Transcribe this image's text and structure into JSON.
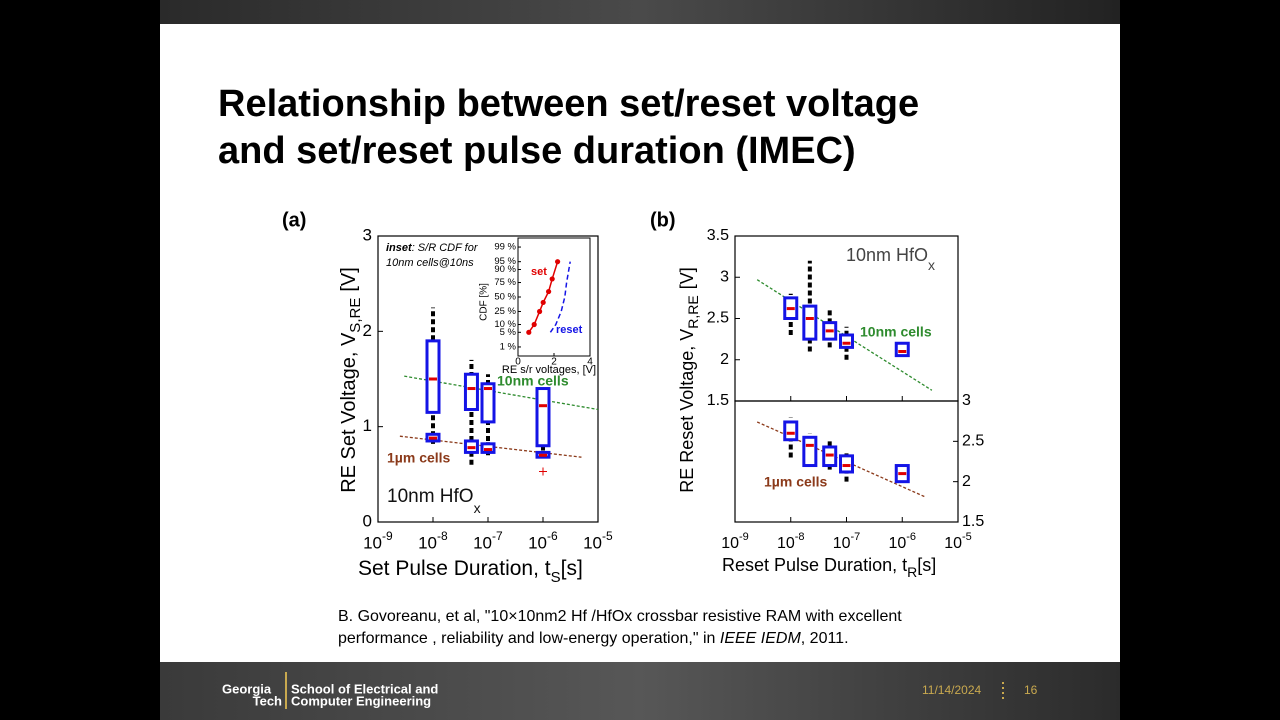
{
  "slide": {
    "title_line1": "Relationship between set/reset voltage",
    "title_line2": "and set/reset pulse duration (IMEC)"
  },
  "chart_data": [
    {
      "type": "box",
      "label": "(a)",
      "ylabel": {
        "text": "RE Set Voltage, V",
        "sub": "S,RE",
        "unit": "[V]"
      },
      "xlabel": {
        "text": "Set Pulse Duration, t",
        "sub": "S",
        "unit": "[s]"
      },
      "material": {
        "text": "10nm HfO",
        "sub": "x"
      },
      "xscale": "log",
      "xlim": [
        1e-09,
        1e-05
      ],
      "xticks": [
        {
          "value": 1e-09,
          "label": "10",
          "sup": "-9"
        },
        {
          "value": 1e-08,
          "label": "10",
          "sup": "-8"
        },
        {
          "value": 1e-07,
          "label": "10",
          "sup": "-7"
        },
        {
          "value": 1e-06,
          "label": "10",
          "sup": "-6"
        },
        {
          "value": 1e-05,
          "label": "10",
          "sup": "-5"
        }
      ],
      "box_color": "#1414e6",
      "median_color": "#e00000",
      "whisker_color": "#000000",
      "axes": [
        {
          "ylim": [
            0,
            3
          ],
          "yticks": [
            0,
            1,
            2,
            3
          ],
          "ytick_side": "left",
          "series": [
            {
              "name": "10nm cells",
              "color": "#2e8b2e",
              "x": [
                1e-08,
                5e-08,
                1e-07,
                1e-06
              ],
              "whislo": [
                0.9,
                0.85,
                0.85,
                0.75
              ],
              "q1": [
                1.15,
                1.18,
                1.05,
                0.8
              ],
              "med": [
                1.5,
                1.4,
                1.4,
                1.22
              ],
              "q3": [
                1.9,
                1.55,
                1.45,
                1.4
              ],
              "whishi": [
                2.25,
                1.7,
                1.55,
                1.4
              ],
              "trend_x": [
                3e-09,
                1e-05
              ],
              "trend_y": [
                1.53,
                1.18
              ]
            },
            {
              "name": "1µm cells",
              "color": "#8b3a1a",
              "x": [
                1e-08,
                5e-08,
                1e-07,
                1e-06
              ],
              "whislo": [
                0.82,
                0.6,
                0.7,
                0.68
              ],
              "q1": [
                0.85,
                0.73,
                0.73,
                0.68
              ],
              "med": [
                0.88,
                0.78,
                0.76,
                0.7
              ],
              "q3": [
                0.92,
                0.85,
                0.82,
                0.73
              ],
              "whishi": [
                0.95,
                0.9,
                0.88,
                0.75
              ],
              "trend_x": [
                2.5e-09,
                5e-06
              ],
              "trend_y": [
                0.9,
                0.68
              ],
              "outliers_x": [
                1e-06
              ],
              "outliers_y": [
                0.53
              ]
            }
          ]
        }
      ],
      "inset": {
        "title": {
          "bold": "inset",
          "rest": ": S/R CDF for",
          "line2": "10nm cells@10ns"
        },
        "xlabel": "RE s/r voltages, [V]",
        "ylabel": "CDF [%]",
        "xlim": [
          0,
          4
        ],
        "xticks": [
          0,
          2,
          4
        ],
        "yscale": "probit",
        "ylim": [
          0.3,
          99.7
        ],
        "yticks": [
          {
            "value": 99,
            "label": "99 %"
          },
          {
            "value": 95,
            "label": "95 %"
          },
          {
            "value": 90,
            "label": "90 %"
          },
          {
            "value": 75,
            "label": "75 %"
          },
          {
            "value": 50,
            "label": "50 %"
          },
          {
            "value": 25,
            "label": "25 %"
          },
          {
            "value": 10,
            "label": "10 %"
          },
          {
            "value": 5,
            "label": "5 %"
          },
          {
            "value": 1,
            "label": "1 %"
          }
        ],
        "series": [
          {
            "name": "set",
            "color": "#e00000",
            "marker": true,
            "x": [
              0.6,
              0.9,
              1.2,
              1.4,
              1.7,
              1.9,
              2.2
            ],
            "y": [
              5,
              10,
              25,
              40,
              60,
              80,
              95
            ]
          },
          {
            "name": "reset",
            "color": "#1414e6",
            "dashed": true,
            "x": [
              1.8,
              2.1,
              2.4,
              2.6,
              2.7,
              2.9
            ],
            "y": [
              5,
              10,
              25,
              50,
              75,
              95
            ]
          }
        ]
      }
    },
    {
      "type": "box",
      "label": "(b)",
      "ylabel": {
        "text": "RE Reset Voltage, V",
        "sub": "R,RE",
        "unit": "[V]"
      },
      "xlabel": {
        "text": "Reset Pulse Duration, t",
        "sub": "R",
        "unit": "[s]"
      },
      "material": {
        "text": "10nm HfO",
        "sub": "x"
      },
      "xscale": "log",
      "xlim": [
        1e-09,
        1e-05
      ],
      "xticks": [
        {
          "value": 1e-09,
          "label": "10",
          "sup": "-9"
        },
        {
          "value": 1e-08,
          "label": "10",
          "sup": "-8"
        },
        {
          "value": 1e-07,
          "label": "10",
          "sup": "-7"
        },
        {
          "value": 1e-06,
          "label": "10",
          "sup": "-6"
        },
        {
          "value": 1e-05,
          "label": "10",
          "sup": "-5"
        }
      ],
      "box_color": "#1414e6",
      "median_color": "#e00000",
      "whisker_color": "#000000",
      "axes": [
        {
          "ylim": [
            1.5,
            3.5
          ],
          "yticks": [
            1.5,
            2,
            2.5,
            3,
            3.5
          ],
          "ytick_side": "left",
          "series": [
            {
              "name": "10nm cells",
              "color": "#2e8b2e",
              "x": [
                1e-08,
                2.2e-08,
                5e-08,
                1e-07,
                1e-06
              ],
              "whislo": [
                2.3,
                2.1,
                2.15,
                2.0,
                2.05
              ],
              "q1": [
                2.5,
                2.25,
                2.25,
                2.15,
                2.05
              ],
              "med": [
                2.62,
                2.5,
                2.35,
                2.2,
                2.1
              ],
              "q3": [
                2.75,
                2.65,
                2.45,
                2.3,
                2.2
              ],
              "whishi": [
                2.8,
                3.2,
                2.6,
                2.4,
                2.2
              ],
              "trend_x": [
                2.5e-09,
                3.4e-06
              ],
              "trend_y": [
                2.97,
                1.63
              ]
            }
          ]
        },
        {
          "ylim": [
            1.5,
            3
          ],
          "yticks": [
            1.5,
            2,
            2.5,
            3
          ],
          "ytick_side": "right",
          "series": [
            {
              "name": "1µm cells",
              "color": "#8b3a1a",
              "x": [
                1e-08,
                2.2e-08,
                5e-08,
                1e-07,
                1e-06
              ],
              "whislo": [
                2.3,
                2.2,
                2.15,
                2.0,
                2.0
              ],
              "q1": [
                2.52,
                2.2,
                2.2,
                2.12,
                2.0
              ],
              "med": [
                2.6,
                2.45,
                2.33,
                2.2,
                2.1
              ],
              "q3": [
                2.74,
                2.55,
                2.43,
                2.32,
                2.2
              ],
              "whishi": [
                2.8,
                2.6,
                2.5,
                2.35,
                2.2
              ],
              "trend_x": [
                2.5e-09,
                2.6e-06
              ],
              "trend_y": [
                2.74,
                1.81
              ]
            }
          ]
        }
      ]
    }
  ],
  "citation": {
    "line1": "B. Govoreanu, et al, \"10×10nm2 Hf /HfOx crossbar resistive RAM with excellent",
    "line2": "performance , reliability and low-energy operation,\" in ",
    "venue": "IEEE IEDM",
    "year": ", 2011."
  },
  "footer": {
    "logo_line1": "Georgia",
    "logo_line2": "Tech",
    "school_line1": "School of Electrical and",
    "school_line2": "Computer Engineering",
    "date": "11/14/2024",
    "page": "16"
  }
}
